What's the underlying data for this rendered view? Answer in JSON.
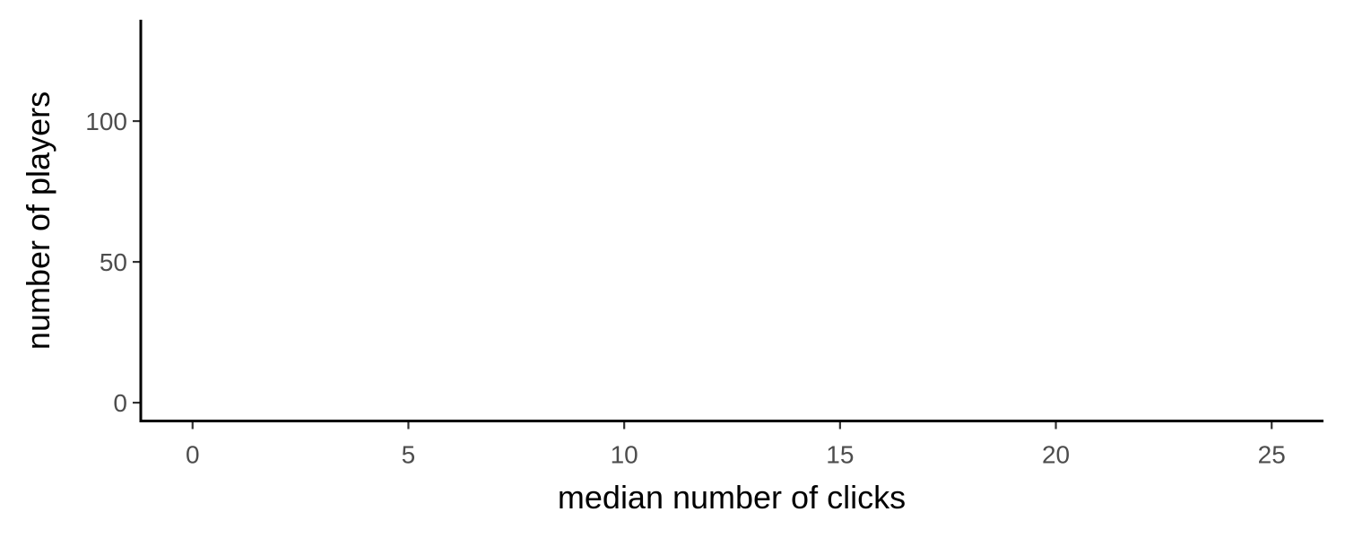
{
  "chart_data": {
    "type": "bar",
    "title": "",
    "xlabel": "median number of clicks",
    "ylabel": "number of players",
    "x_ticks": [
      0,
      5,
      10,
      15,
      20,
      25
    ],
    "y_ticks": [
      0,
      50,
      100
    ],
    "xlim": [
      -1.2,
      26.2
    ],
    "ylim": [
      -6.5,
      136
    ],
    "grid": false,
    "legend": "none",
    "series": []
  }
}
